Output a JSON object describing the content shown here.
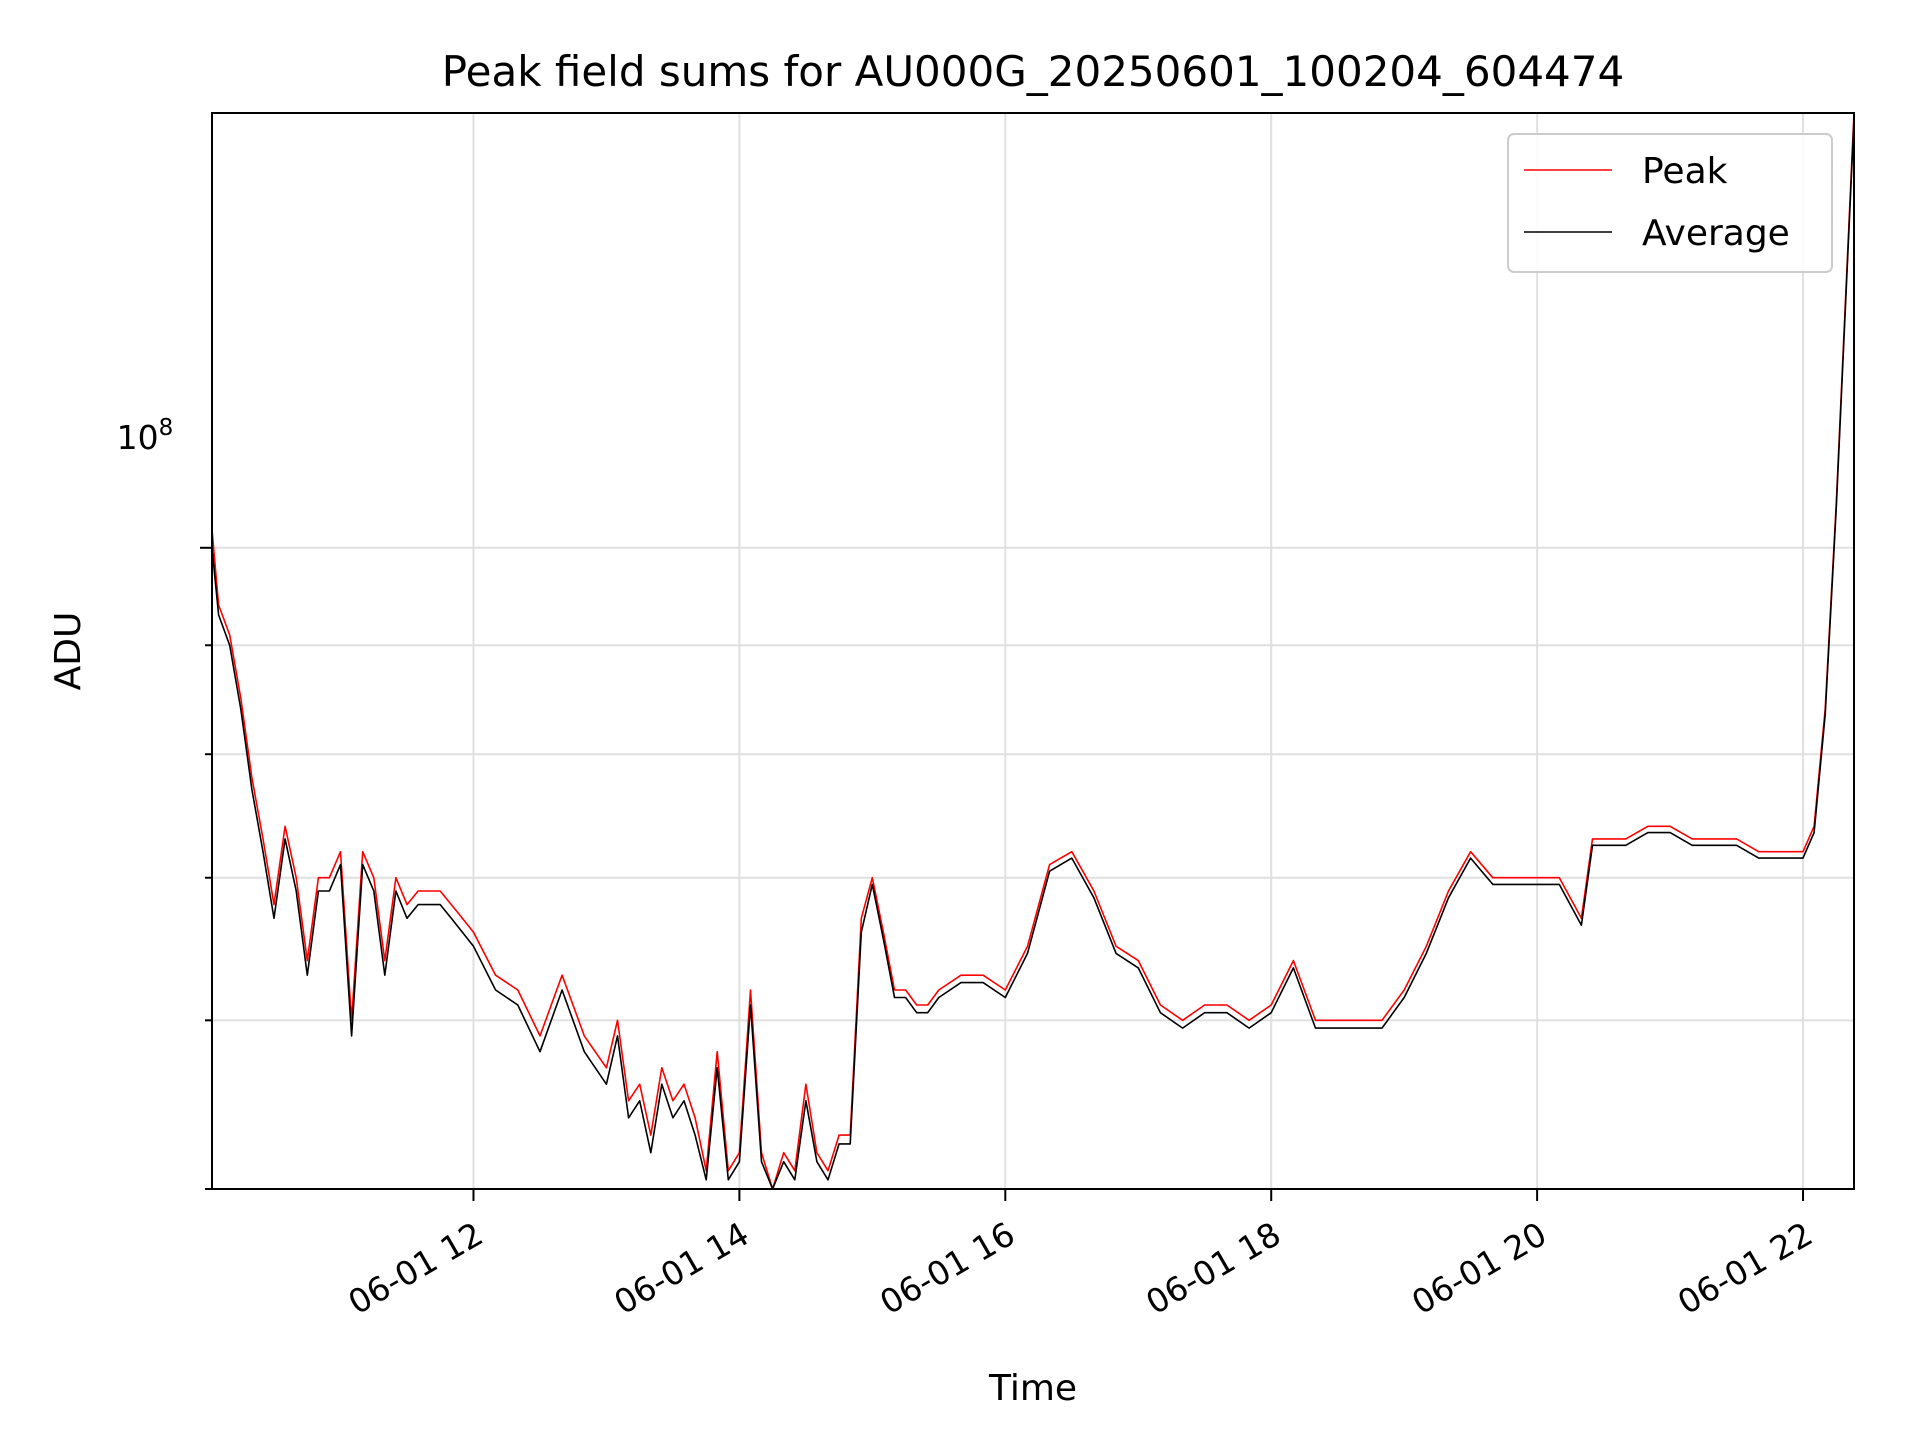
{
  "chart_data": {
    "type": "line",
    "title": "Peak field sums for AU000G_20250601_100204_604474",
    "xlabel": "Time",
    "ylabel": "ADU",
    "yscale": "log",
    "grid": true,
    "legend_position": "top-right",
    "x_tick_labels": [
      "06-01 12",
      "06-01 14",
      "06-01 16",
      "06-01 18",
      "06-01 20",
      "06-01 22"
    ],
    "y_tick_label": {
      "base": "10",
      "exponent": "8"
    },
    "xlim": [
      "2025-06-01 10:02",
      "2025-06-01 22:23"
    ],
    "ylim": [
      50000000,
      160000000
    ],
    "series": [
      {
        "name": "Peak",
        "color": "#ff0000",
        "x": [
          "10:02",
          "10:05",
          "10:10",
          "10:15",
          "10:20",
          "10:25",
          "10:30",
          "10:35",
          "10:40",
          "10:45",
          "10:50",
          "10:55",
          "11:00",
          "11:05",
          "11:10",
          "11:15",
          "11:20",
          "11:25",
          "11:30",
          "11:35",
          "11:40",
          "11:45",
          "11:50",
          "11:55",
          "12:00",
          "12:10",
          "12:20",
          "12:30",
          "12:40",
          "12:50",
          "13:00",
          "13:05",
          "13:10",
          "13:15",
          "13:20",
          "13:25",
          "13:30",
          "13:35",
          "13:40",
          "13:45",
          "13:50",
          "13:55",
          "14:00",
          "14:05",
          "14:10",
          "14:15",
          "14:20",
          "14:25",
          "14:30",
          "14:35",
          "14:40",
          "14:45",
          "14:50",
          "14:55",
          "15:00",
          "15:05",
          "15:10",
          "15:15",
          "15:20",
          "15:25",
          "15:30",
          "15:40",
          "15:50",
          "16:00",
          "16:10",
          "16:20",
          "16:30",
          "16:40",
          "16:50",
          "17:00",
          "17:10",
          "17:20",
          "17:30",
          "17:40",
          "17:50",
          "18:00",
          "18:10",
          "18:20",
          "18:30",
          "18:40",
          "18:50",
          "19:00",
          "19:10",
          "19:20",
          "19:30",
          "19:40",
          "19:50",
          "20:00",
          "20:10",
          "20:20",
          "20:25",
          "20:30",
          "20:40",
          "20:50",
          "21:00",
          "21:10",
          "21:20",
          "21:30",
          "21:40",
          "21:50",
          "22:00",
          "22:05",
          "22:10",
          "22:15",
          "22:23"
        ],
        "y": [
          102000000,
          94000000,
          91000000,
          85000000,
          78000000,
          73000000,
          68000000,
          74000000,
          70000000,
          64000000,
          70000000,
          70000000,
          72000000,
          60000000,
          72000000,
          70000000,
          64000000,
          70000000,
          68000000,
          69000000,
          69000000,
          69000000,
          68000000,
          67000000,
          66000000,
          63000000,
          62000000,
          59000000,
          63000000,
          59000000,
          57000000,
          60000000,
          55000000,
          56000000,
          53000000,
          57000000,
          55000000,
          56000000,
          54000000,
          51000000,
          58000000,
          51000000,
          52000000,
          62000000,
          52000000,
          50000000,
          52000000,
          51000000,
          56000000,
          52000000,
          51000000,
          53000000,
          53000000,
          67000000,
          70000000,
          66000000,
          62000000,
          62000000,
          61000000,
          61000000,
          62000000,
          63000000,
          63000000,
          62000000,
          65000000,
          71000000,
          72000000,
          69000000,
          65000000,
          64000000,
          61000000,
          60000000,
          61000000,
          61000000,
          60000000,
          61000000,
          64000000,
          60000000,
          60000000,
          60000000,
          60000000,
          62000000,
          65000000,
          69000000,
          72000000,
          70000000,
          70000000,
          70000000,
          70000000,
          67000000,
          73000000,
          73000000,
          73000000,
          74000000,
          74000000,
          73000000,
          73000000,
          73000000,
          72000000,
          72000000,
          72000000,
          74000000,
          84000000,
          105000000,
          160000000
        ]
      },
      {
        "name": "Average",
        "color": "#000000",
        "x": [
          "10:02",
          "10:05",
          "10:10",
          "10:15",
          "10:20",
          "10:25",
          "10:30",
          "10:35",
          "10:40",
          "10:45",
          "10:50",
          "10:55",
          "11:00",
          "11:05",
          "11:10",
          "11:15",
          "11:20",
          "11:25",
          "11:30",
          "11:35",
          "11:40",
          "11:45",
          "11:50",
          "11:55",
          "12:00",
          "12:10",
          "12:20",
          "12:30",
          "12:40",
          "12:50",
          "13:00",
          "13:05",
          "13:10",
          "13:15",
          "13:20",
          "13:25",
          "13:30",
          "13:35",
          "13:40",
          "13:45",
          "13:50",
          "13:55",
          "14:00",
          "14:05",
          "14:10",
          "14:15",
          "14:20",
          "14:25",
          "14:30",
          "14:35",
          "14:40",
          "14:45",
          "14:50",
          "14:55",
          "15:00",
          "15:05",
          "15:10",
          "15:15",
          "15:20",
          "15:25",
          "15:30",
          "15:40",
          "15:50",
          "16:00",
          "16:10",
          "16:20",
          "16:30",
          "16:40",
          "16:50",
          "17:00",
          "17:10",
          "17:20",
          "17:30",
          "17:40",
          "17:50",
          "18:00",
          "18:10",
          "18:20",
          "18:30",
          "18:40",
          "18:50",
          "19:00",
          "19:10",
          "19:20",
          "19:30",
          "19:40",
          "19:50",
          "20:00",
          "20:10",
          "20:20",
          "20:25",
          "20:30",
          "20:40",
          "20:50",
          "21:00",
          "21:10",
          "21:20",
          "21:30",
          "21:40",
          "21:50",
          "22:00",
          "22:05",
          "22:10",
          "22:15",
          "22:23"
        ],
        "y": [
          100000000,
          93000000,
          90000000,
          84000000,
          77000000,
          72000000,
          67000000,
          73000000,
          69000000,
          63000000,
          69000000,
          69000000,
          71000000,
          59000000,
          71000000,
          69000000,
          63000000,
          69000000,
          67000000,
          68000000,
          68000000,
          68000000,
          67000000,
          66000000,
          65000000,
          62000000,
          61000000,
          58000000,
          62000000,
          58000000,
          56000000,
          59000000,
          54000000,
          55000000,
          52000000,
          56000000,
          54000000,
          55000000,
          53000000,
          50500000,
          57000000,
          50500000,
          51500000,
          61000000,
          51500000,
          49500000,
          51500000,
          50500000,
          55000000,
          51500000,
          50500000,
          52500000,
          52500000,
          66000000,
          69500000,
          65500000,
          61500000,
          61500000,
          60500000,
          60500000,
          61500000,
          62500000,
          62500000,
          61500000,
          64500000,
          70500000,
          71500000,
          68500000,
          64500000,
          63500000,
          60500000,
          59500000,
          60500000,
          60500000,
          59500000,
          60500000,
          63500000,
          59500000,
          59500000,
          59500000,
          59500000,
          61500000,
          64500000,
          68500000,
          71500000,
          69500000,
          69500000,
          69500000,
          69500000,
          66500000,
          72500000,
          72500000,
          72500000,
          73500000,
          73500000,
          72500000,
          72500000,
          72500000,
          71500000,
          71500000,
          71500000,
          73500000,
          83500000,
          104500000,
          159000000
        ]
      }
    ]
  },
  "legend": {
    "peak_label": "Peak",
    "average_label": "Average"
  }
}
